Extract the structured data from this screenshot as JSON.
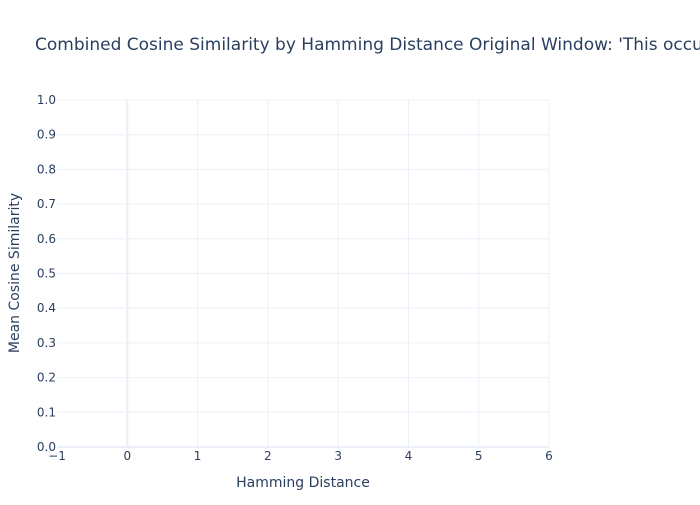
{
  "chart_data": {
    "type": "line",
    "title": "Combined Cosine Similarity by Hamming Distance Original Window: 'This occu",
    "xlabel": "Hamming Distance",
    "ylabel": "Mean Cosine Similarity",
    "xlim": [
      -1,
      6
    ],
    "ylim": [
      0,
      1
    ],
    "xticks": [
      "−1",
      "0",
      "1",
      "2",
      "3",
      "4",
      "5",
      "6"
    ],
    "yticks": [
      "0.0",
      "0.1",
      "0.2",
      "0.3",
      "0.4",
      "0.5",
      "0.6",
      "0.7",
      "0.8",
      "0.9",
      "1.0"
    ],
    "grid": true,
    "series": []
  }
}
